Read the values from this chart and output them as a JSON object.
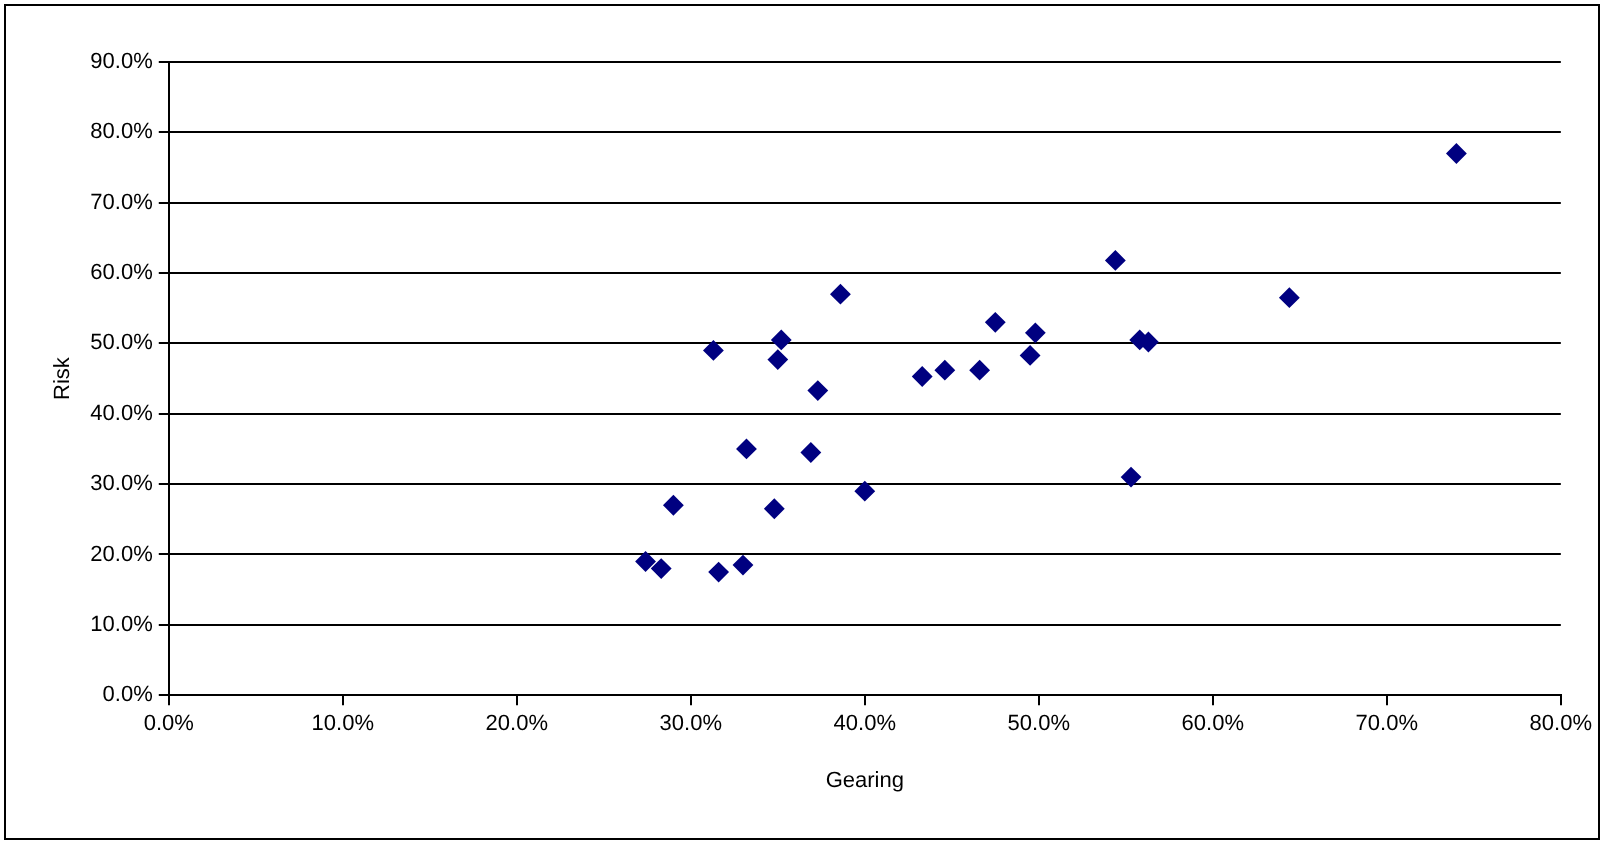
{
  "chart_data": {
    "type": "scatter",
    "xlabel": "Gearing",
    "ylabel": "Risk",
    "marker": "diamond",
    "grid": "y",
    "xlim": [
      0,
      80
    ],
    "ylim": [
      0,
      90
    ],
    "xticks": [
      {
        "value": 0,
        "label": "0.0%"
      },
      {
        "value": 10,
        "label": "10.0%"
      },
      {
        "value": 20,
        "label": "20.0%"
      },
      {
        "value": 30,
        "label": "30.0%"
      },
      {
        "value": 40,
        "label": "40.0%"
      },
      {
        "value": 50,
        "label": "50.0%"
      },
      {
        "value": 60,
        "label": "60.0%"
      },
      {
        "value": 70,
        "label": "70.0%"
      },
      {
        "value": 80,
        "label": "80.0%"
      }
    ],
    "yticks": [
      {
        "value": 0,
        "label": "0.0%"
      },
      {
        "value": 10,
        "label": "10.0%"
      },
      {
        "value": 20,
        "label": "20.0%"
      },
      {
        "value": 30,
        "label": "30.0%"
      },
      {
        "value": 40,
        "label": "40.0%"
      },
      {
        "value": 50,
        "label": "50.0%"
      },
      {
        "value": 60,
        "label": "60.0%"
      },
      {
        "value": 70,
        "label": "70.0%"
      },
      {
        "value": 80,
        "label": "80.0%"
      },
      {
        "value": 90,
        "label": "90.0%"
      }
    ],
    "series": [
      {
        "color": "#000080",
        "x": [
          27.4,
          28.3,
          29,
          31.3,
          31.6,
          33,
          33.2,
          34.8,
          35,
          35.2,
          36.9,
          37.3,
          38.6,
          40,
          43.3,
          44.6,
          46.6,
          47.5,
          49.5,
          49.8,
          54.4,
          55.3,
          55.8,
          56.3,
          64.4,
          74
        ],
        "values": [
          19,
          18,
          27,
          49,
          17.5,
          18.5,
          35,
          26.5,
          47.7,
          50.5,
          34.5,
          43.3,
          57,
          29,
          45.3,
          46.2,
          46.2,
          53,
          48.3,
          51.5,
          61.8,
          31,
          50.5,
          50.2,
          56.5,
          77
        ]
      }
    ]
  }
}
